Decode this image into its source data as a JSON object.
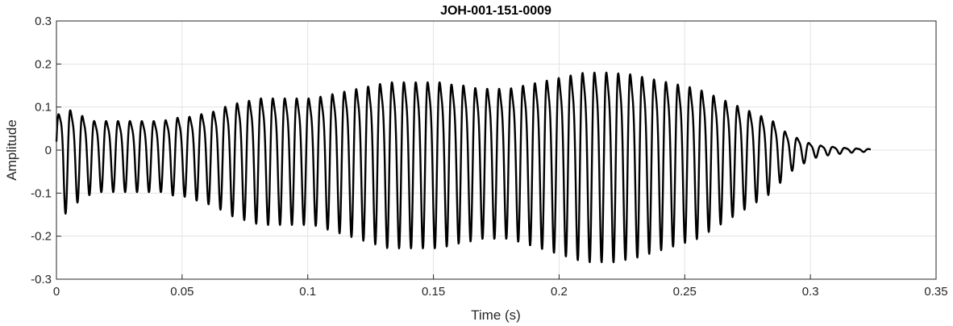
{
  "chart_data": {
    "type": "line",
    "title": "JOH-001-151-0009",
    "xlabel": "Time (s)",
    "ylabel": "Amplitude",
    "xlim": [
      0,
      0.35
    ],
    "ylim": [
      -0.3,
      0.3
    ],
    "grid": true,
    "xticks": [
      0,
      0.05,
      0.1,
      0.15,
      0.2,
      0.25,
      0.3,
      0.35
    ],
    "xtick_labels": [
      "0",
      "0.05",
      "0.1",
      "0.15",
      "0.2",
      "0.25",
      "0.3",
      "0.35"
    ],
    "yticks": [
      -0.3,
      -0.2,
      -0.1,
      0,
      0.1,
      0.2,
      0.3
    ],
    "ytick_labels": [
      "-0.3",
      "-0.2",
      "-0.1",
      "0",
      "0.1",
      "0.2",
      "0.3"
    ],
    "series": [
      {
        "color": "#000000",
        "x": [
          0,
          0.003,
          0.006,
          0.009,
          0.012,
          0.015,
          0.018,
          0.021,
          0.024,
          0.027,
          0.03,
          0.033,
          0.036,
          0.039,
          0.042,
          0.045,
          0.048,
          0.051,
          0.054,
          0.057,
          0.06,
          0.063,
          0.066,
          0.069,
          0.072,
          0.075,
          0.078,
          0.081,
          0.084,
          0.087,
          0.09,
          0.093,
          0.096,
          0.099,
          0.102,
          0.105,
          0.108,
          0.111,
          0.114,
          0.117,
          0.12,
          0.123,
          0.126,
          0.129,
          0.132,
          0.135,
          0.138,
          0.141,
          0.144,
          0.147,
          0.15,
          0.153,
          0.156,
          0.159,
          0.162,
          0.165,
          0.168,
          0.171,
          0.174,
          0.177,
          0.18,
          0.183,
          0.186,
          0.189,
          0.192,
          0.195,
          0.198,
          0.201,
          0.204,
          0.207,
          0.21,
          0.213,
          0.216,
          0.219,
          0.222,
          0.225,
          0.228,
          0.231,
          0.234,
          0.237,
          0.24,
          0.243,
          0.246,
          0.249,
          0.252,
          0.255,
          0.258,
          0.261,
          0.264,
          0.267,
          0.27,
          0.273,
          0.276,
          0.279,
          0.282,
          0.285,
          0.288,
          0.291,
          0.294,
          0.297,
          0.3,
          0.303,
          0.306,
          0.309,
          0.312,
          0.315,
          0.318,
          0.321,
          0.324
        ],
        "envelope": [
          0.1,
          0.14,
          0.12,
          0.11,
          0.1,
          0.09,
          0.09,
          0.09,
          0.09,
          0.09,
          0.09,
          0.09,
          0.09,
          0.09,
          0.09,
          0.095,
          0.1,
          0.1,
          0.105,
          0.11,
          0.115,
          0.12,
          0.13,
          0.14,
          0.145,
          0.15,
          0.155,
          0.16,
          0.16,
          0.16,
          0.16,
          0.16,
          0.16,
          0.16,
          0.16,
          0.165,
          0.17,
          0.175,
          0.18,
          0.185,
          0.19,
          0.195,
          0.2,
          0.205,
          0.21,
          0.21,
          0.21,
          0.21,
          0.21,
          0.21,
          0.21,
          0.21,
          0.205,
          0.2,
          0.2,
          0.195,
          0.19,
          0.19,
          0.19,
          0.19,
          0.19,
          0.195,
          0.2,
          0.205,
          0.21,
          0.215,
          0.22,
          0.225,
          0.23,
          0.235,
          0.24,
          0.24,
          0.24,
          0.24,
          0.24,
          0.235,
          0.235,
          0.23,
          0.225,
          0.22,
          0.215,
          0.21,
          0.205,
          0.2,
          0.195,
          0.19,
          0.18,
          0.17,
          0.16,
          0.15,
          0.14,
          0.13,
          0.12,
          0.11,
          0.1,
          0.09,
          0.07,
          0.05,
          0.04,
          0.03,
          0.02,
          0.015,
          0.012,
          0.01,
          0.008,
          0.006,
          0.005,
          0.004,
          0.003
        ]
      }
    ]
  }
}
